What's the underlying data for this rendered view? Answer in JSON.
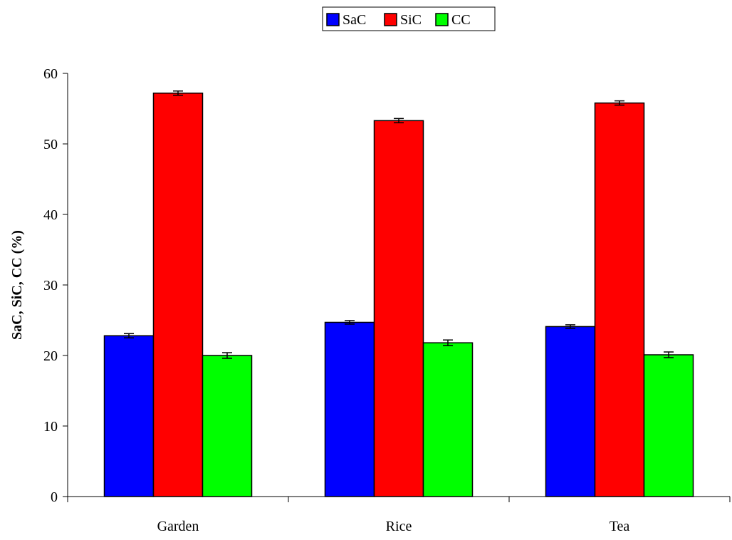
{
  "chart_data": {
    "type": "bar",
    "title": "",
    "xlabel": "",
    "ylabel": "SaC, SiC, CC (%)",
    "categories": [
      "Garden",
      "Rice",
      "Tea"
    ],
    "ylim": [
      0,
      60
    ],
    "yticks": [
      0,
      10,
      20,
      30,
      40,
      50,
      60
    ],
    "ytick_labels": [
      "0",
      "10",
      "20",
      "30",
      "40",
      "50",
      "60"
    ],
    "grid": false,
    "legend_position": "top-center",
    "series": [
      {
        "name": "SaC",
        "color": "#0000ff",
        "values": [
          22.8,
          24.7,
          24.1
        ],
        "errors": [
          0.3,
          0.25,
          0.25
        ]
      },
      {
        "name": "SiC",
        "color": "#ff0000",
        "values": [
          57.2,
          53.3,
          55.8
        ],
        "errors": [
          0.3,
          0.3,
          0.3
        ]
      },
      {
        "name": "CC",
        "color": "#00ff00",
        "values": [
          20.0,
          21.8,
          20.1
        ],
        "errors": [
          0.4,
          0.4,
          0.4
        ]
      }
    ]
  }
}
